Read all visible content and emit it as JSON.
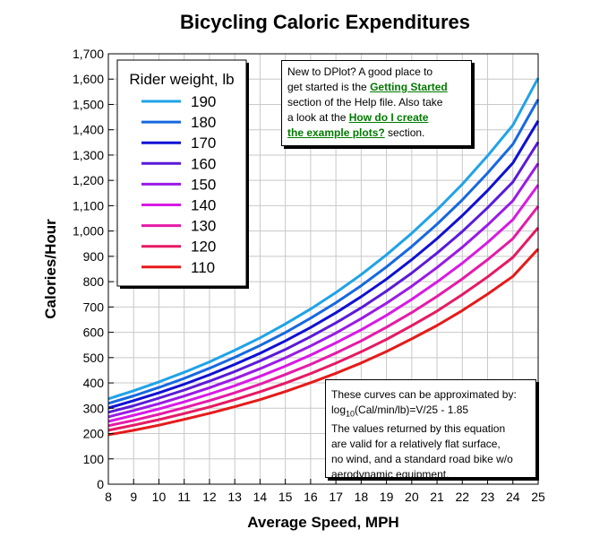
{
  "chart_data": {
    "type": "line",
    "title": "Bicycling Caloric Expenditures",
    "xlabel": "Average Speed, MPH",
    "ylabel": "Calories/Hour",
    "xlim": [
      8,
      25
    ],
    "ylim": [
      0,
      1700
    ],
    "x_ticks": [
      "8",
      "9",
      "10",
      "11",
      "12",
      "13",
      "14",
      "15",
      "16",
      "17",
      "18",
      "19",
      "20",
      "21",
      "22",
      "23",
      "24",
      "25"
    ],
    "y_ticks": [
      "0",
      "100",
      "200",
      "300",
      "400",
      "500",
      "600",
      "700",
      "800",
      "900",
      "1,000",
      "1,100",
      "1,200",
      "1,300",
      "1,400",
      "1,500",
      "1,600",
      "1,700"
    ],
    "grid": true,
    "legend_title": "Rider weight, lb",
    "legend_position": "top-left",
    "x": [
      8,
      9,
      10,
      11,
      12,
      13,
      14,
      15,
      16,
      17,
      18,
      19,
      20,
      21,
      22,
      23,
      24,
      25
    ],
    "series": [
      {
        "name": "190",
        "color": "#1fa3e8",
        "values": [
          337,
          369,
          404,
          442,
          483,
          529,
          578,
          633,
          692,
          757,
          828,
          906,
          991,
          1084,
          1185,
          1297,
          1418,
          1604
        ]
      },
      {
        "name": "180",
        "color": "#1668e0",
        "values": [
          319,
          349,
          382,
          418,
          458,
          501,
          548,
          599,
          656,
          717,
          784,
          858,
          939,
          1027,
          1123,
          1229,
          1343,
          1520
        ]
      },
      {
        "name": "170",
        "color": "#1010d4",
        "values": [
          301,
          330,
          361,
          395,
          432,
          473,
          517,
          566,
          619,
          677,
          741,
          810,
          887,
          970,
          1061,
          1160,
          1269,
          1435
        ]
      },
      {
        "name": "160",
        "color": "#5a1ad8",
        "values": [
          284,
          310,
          340,
          372,
          407,
          445,
          487,
          532,
          583,
          637,
          697,
          763,
          834,
          913,
          998,
          1092,
          1194,
          1351
        ]
      },
      {
        "name": "150",
        "color": "#9a1ae6",
        "values": [
          266,
          291,
          318,
          348,
          381,
          417,
          456,
          499,
          546,
          597,
          654,
          715,
          782,
          856,
          936,
          1024,
          1120,
          1267
        ]
      },
      {
        "name": "140",
        "color": "#d81ae6",
        "values": [
          248,
          272,
          297,
          325,
          356,
          389,
          426,
          466,
          510,
          558,
          610,
          667,
          730,
          799,
          873,
          955,
          1045,
          1182
        ]
      },
      {
        "name": "130",
        "color": "#e61aa8",
        "values": [
          231,
          252,
          276,
          302,
          330,
          361,
          395,
          433,
          473,
          518,
          566,
          620,
          678,
          742,
          811,
          887,
          970,
          1098
        ]
      },
      {
        "name": "120",
        "color": "#e61a64",
        "values": [
          213,
          233,
          255,
          279,
          305,
          334,
          365,
          399,
          437,
          478,
          523,
          572,
          626,
          684,
          749,
          819,
          896,
          1013
        ]
      },
      {
        "name": "110",
        "color": "#e61a1a",
        "values": [
          195,
          213,
          233,
          256,
          280,
          306,
          334,
          366,
          401,
          438,
          479,
          524,
          574,
          627,
          686,
          751,
          821,
          929
        ]
      }
    ]
  },
  "notes": {
    "help": {
      "line1": "New to DPlot? A good place to",
      "line2_pre": "get started is the ",
      "line2_link": "Getting Started",
      "line3": "section of the Help file. Also take",
      "line4_pre": "a look at the ",
      "line4_link": "How do I create",
      "line5_link": "the example plots?",
      "line5_post": " section."
    },
    "formula": {
      "line1": "These curves can be approximated by:",
      "eq_pre": "log",
      "eq_sub": "10",
      "eq_post": "(Cal/min/lb)=V/25 - 1.85",
      "line3": "The values returned by this equation",
      "line4": "are valid for a relatively flat surface,",
      "line5": "no wind, and a standard road bike w/o",
      "line6": "aerodynamic equipment."
    }
  }
}
